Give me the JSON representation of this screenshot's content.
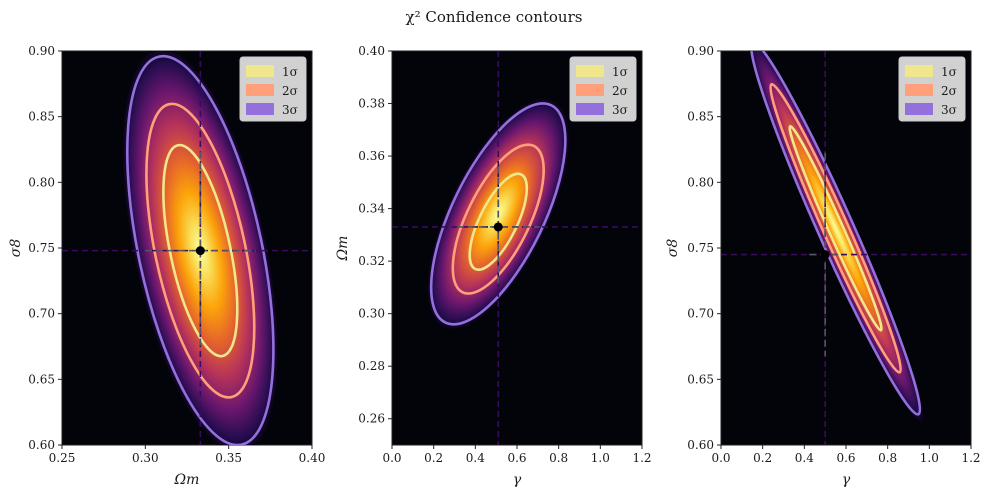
{
  "figure": {
    "suptitle": "χ² Confidence contours"
  },
  "legend": {
    "entries": [
      {
        "label": "1σ",
        "color": "#f0e68c"
      },
      {
        "label": "2σ",
        "color": "#ffa07a"
      },
      {
        "label": "3σ",
        "color": "#9370db"
      }
    ],
    "placement": "top-right"
  },
  "colors": {
    "background": "#03030a",
    "dashed_lines": "#3a0a5e",
    "crosshair": "#555566",
    "marker": "#000000",
    "colormap": "inferno"
  },
  "chart_data": [
    {
      "type": "heatmap",
      "title": "",
      "xlabel": "Ωm",
      "ylabel": "σ8",
      "xlim": [
        0.25,
        0.4
      ],
      "ylim": [
        0.6,
        0.9
      ],
      "xticks": [
        "0.25",
        "0.30",
        "0.35",
        "0.40"
      ],
      "yticks": [
        "0.60",
        "0.65",
        "0.70",
        "0.75",
        "0.80",
        "0.85",
        "0.90"
      ],
      "best_fit": {
        "x": 0.333,
        "y": 0.748
      },
      "contour_levels": [
        {
          "level": "1σ",
          "center": [
            0.333,
            0.748
          ],
          "half_width_x": 0.018,
          "half_width_y": 0.082,
          "tilt_deg": -12
        },
        {
          "level": "2σ",
          "center": [
            0.333,
            0.748
          ],
          "half_width_x": 0.027,
          "half_width_y": 0.114,
          "tilt_deg": -12
        },
        {
          "level": "3σ",
          "center": [
            0.333,
            0.748
          ],
          "half_width_x": 0.037,
          "half_width_y": 0.151,
          "tilt_deg": -12
        }
      ],
      "grid": false,
      "legend": "top-right"
    },
    {
      "type": "heatmap",
      "title": "",
      "xlabel": "γ",
      "ylabel": "Ωm",
      "xlim": [
        0.0,
        1.2
      ],
      "ylim": [
        0.25,
        0.4
      ],
      "xticks": [
        "0.0",
        "0.2",
        "0.4",
        "0.6",
        "0.8",
        "1.0",
        "1.2"
      ],
      "yticks": [
        "0.26",
        "0.28",
        "0.30",
        "0.32",
        "0.34",
        "0.36",
        "0.38",
        "0.40"
      ],
      "best_fit": {
        "x": 0.51,
        "y": 0.333
      },
      "contour_levels": [
        {
          "level": "1σ",
          "center": [
            0.51,
            0.335
          ],
          "half_width_x": 0.09,
          "half_width_y": 0.02,
          "tilt_deg": 26
        },
        {
          "level": "2σ",
          "center": [
            0.51,
            0.336
          ],
          "half_width_x": 0.15,
          "half_width_y": 0.031,
          "tilt_deg": 26
        },
        {
          "level": "3σ",
          "center": [
            0.51,
            0.338
          ],
          "half_width_x": 0.22,
          "half_width_y": 0.046,
          "tilt_deg": 26
        }
      ],
      "grid": false,
      "legend": "top-right"
    },
    {
      "type": "heatmap",
      "title": "",
      "xlabel": "γ",
      "ylabel": "σ8",
      "xlim": [
        0.0,
        1.2
      ],
      "ylim": [
        0.6,
        0.9
      ],
      "xticks": [
        "0.0",
        "0.2",
        "0.4",
        "0.6",
        "0.8",
        "1.0",
        "1.2"
      ],
      "yticks": [
        "0.60",
        "0.65",
        "0.70",
        "0.75",
        "0.80",
        "0.85",
        "0.90"
      ],
      "best_fit": {
        "x": 0.5,
        "y": 0.745
      },
      "contour_levels": [
        {
          "level": "1σ",
          "center": [
            0.55,
            0.765
          ],
          "half_width_x": 0.035,
          "half_width_y": 0.085,
          "tilt_deg": -24
        },
        {
          "level": "2σ",
          "center": [
            0.55,
            0.765
          ],
          "half_width_x": 0.06,
          "half_width_y": 0.12,
          "tilt_deg": -24
        },
        {
          "level": "3σ",
          "center": [
            0.55,
            0.765
          ],
          "half_width_x": 0.085,
          "half_width_y": 0.155,
          "tilt_deg": -24
        }
      ],
      "grid": false,
      "legend": "top-right"
    }
  ]
}
